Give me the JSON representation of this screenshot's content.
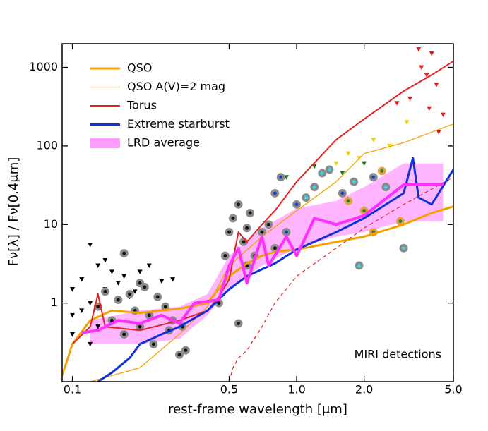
{
  "chart_data": {
    "type": "line",
    "xlabel": "rest-frame wavelength [μm]",
    "ylabel": "Fν[λ] / Fν[0.4μm]",
    "annotation": "MIRI detections",
    "xscale": "log",
    "yscale": "log",
    "xlim": [
      0.09,
      5.0
    ],
    "ylim": [
      0.1,
      2000
    ],
    "xticks": [
      0.1,
      0.5,
      {
        "value": 1,
        "label": "1.0"
      },
      {
        "value": 2,
        "label": "2.0"
      },
      {
        "value": 5,
        "label": "5.0"
      }
    ],
    "yticks": [
      1,
      10,
      100,
      1000
    ],
    "legend": "upper left",
    "series": [
      {
        "name": "QSO",
        "color": "#f5a000",
        "width": 3,
        "x": [
          0.09,
          0.1,
          0.12,
          0.15,
          0.2,
          0.3,
          0.4,
          0.5,
          0.6,
          0.7,
          0.8,
          1.0,
          1.5,
          2,
          3,
          4,
          5
        ],
        "y": [
          0.12,
          0.3,
          0.6,
          0.8,
          0.75,
          0.85,
          1.0,
          2.2,
          3.2,
          4.0,
          4.5,
          4.8,
          6,
          7,
          10,
          14,
          17
        ]
      },
      {
        "name": "QSO A(V)=2 mag",
        "color": "#f5a000",
        "width": 1.3,
        "x": [
          0.12,
          0.2,
          0.3,
          0.4,
          0.5,
          0.7,
          1,
          1.5,
          2,
          3,
          4,
          5
        ],
        "y": [
          0.1,
          0.15,
          0.4,
          0.9,
          3,
          7,
          15,
          35,
          80,
          110,
          150,
          190
        ]
      },
      {
        "name": "Torus",
        "color": "#e82020",
        "width": 2,
        "x": [
          0.1,
          0.12,
          0.13,
          0.14,
          0.2,
          0.3,
          0.4,
          0.45,
          0.5,
          0.55,
          0.6,
          0.7,
          0.8,
          1,
          1.5,
          2,
          3,
          4,
          5
        ],
        "y": [
          0.3,
          0.5,
          1.3,
          0.5,
          0.45,
          0.6,
          0.8,
          1.2,
          2,
          8,
          6,
          10,
          15,
          35,
          120,
          220,
          500,
          800,
          1200
        ]
      },
      {
        "color": "#e82020",
        "width": 1.2,
        "dash": "5,4",
        "x": [
          0.5,
          0.52,
          0.55,
          0.6,
          0.7,
          0.8,
          1,
          1.5,
          2,
          3,
          5
        ],
        "y": [
          0.1,
          0.15,
          0.2,
          0.25,
          0.5,
          1.0,
          2.2,
          5,
          9,
          18,
          40
        ]
      },
      {
        "name": "Extreme starburst",
        "color": "#1030d8",
        "width": 3,
        "x": [
          0.13,
          0.15,
          0.18,
          0.2,
          0.25,
          0.3,
          0.4,
          0.5,
          0.6,
          0.8,
          1,
          1.5,
          2,
          3,
          3.3,
          3.5,
          4,
          5
        ],
        "y": [
          0.1,
          0.13,
          0.2,
          0.3,
          0.4,
          0.5,
          0.8,
          1.5,
          2.2,
          3.2,
          4.8,
          8,
          12,
          25,
          70,
          22,
          18,
          50
        ]
      },
      {
        "name": "LRD average",
        "color": "#ff30ff",
        "width": 4,
        "band_color": "#ff9cff",
        "x": [
          0.11,
          0.13,
          0.16,
          0.2,
          0.25,
          0.3,
          0.35,
          0.45,
          0.5,
          0.55,
          0.6,
          0.7,
          0.75,
          0.9,
          1,
          1.2,
          1.5,
          2,
          3,
          4.5
        ],
        "y": [
          0.42,
          0.45,
          0.6,
          0.55,
          0.7,
          0.55,
          1.0,
          1.1,
          3,
          5,
          1.8,
          7,
          3,
          7,
          4,
          12,
          10,
          13,
          32,
          32
        ],
        "band_x": [
          0.12,
          0.2,
          0.3,
          0.4,
          0.5,
          0.7,
          1.0,
          1.5,
          2.0,
          3.0,
          4.5
        ],
        "band_high": [
          0.6,
          0.8,
          0.9,
          1.3,
          4,
          9,
          16,
          20,
          30,
          60,
          60
        ],
        "band_low": [
          0.3,
          0.3,
          0.35,
          0.7,
          1.5,
          3,
          5,
          7,
          8,
          11,
          11
        ]
      }
    ],
    "scatter": [
      {
        "edge": "#8a8a8a",
        "face": "#111111",
        "x": [
          0.13,
          0.14,
          0.15,
          0.16,
          0.17,
          0.18,
          0.19,
          0.2,
          0.21,
          0.22,
          0.24,
          0.26,
          0.28,
          0.3,
          0.32,
          0.17,
          0.2,
          0.23,
          0.27,
          0.31,
          0.45,
          0.48,
          0.5,
          0.52,
          0.55,
          0.58,
          0.6,
          0.62,
          0.65,
          0.7,
          0.75,
          0.8,
          0.55,
          0.6
        ],
        "y": [
          0.9,
          1.4,
          0.6,
          1.1,
          0.4,
          1.3,
          0.8,
          0.5,
          1.6,
          0.7,
          1.2,
          0.9,
          0.6,
          0.22,
          0.25,
          4.3,
          1.8,
          0.3,
          0.45,
          0.5,
          1.0,
          4.0,
          8,
          12,
          18,
          6,
          9,
          14,
          4,
          8,
          10,
          5,
          0.55,
          3
        ]
      },
      {
        "edge": "#8a8a8a",
        "face": "#30d8e8",
        "x": [
          1.3,
          1.4,
          1.2,
          1.8,
          2.5,
          3.0,
          1.9,
          1.1
        ],
        "y": [
          45,
          50,
          30,
          35,
          30,
          5,
          3,
          22
        ]
      },
      {
        "edge": "#8a8a8a",
        "face": "#1a3fcc",
        "x": [
          0.8,
          0.85,
          1.0,
          1.6,
          2.2,
          0.9
        ],
        "y": [
          25,
          40,
          18,
          25,
          40,
          8
        ]
      },
      {
        "edge": "#e8a040",
        "face": "#2e7d32",
        "x": [
          1.7,
          2.0,
          2.4,
          2.9,
          2.2
        ],
        "y": [
          20,
          15,
          48,
          11,
          8
        ]
      }
    ],
    "limits": [
      {
        "color": "#000000",
        "x": [
          0.1,
          0.11,
          0.12,
          0.13,
          0.14,
          0.15,
          0.16,
          0.18,
          0.2,
          0.22,
          0.1,
          0.11,
          0.12,
          0.14,
          0.17,
          0.19,
          0.25,
          0.28,
          0.1,
          0.12,
          0.13
        ],
        "y": [
          1.5,
          2,
          5.5,
          3,
          3.5,
          2.5,
          1.8,
          1.2,
          2.5,
          3,
          0.4,
          0.8,
          1.0,
          1.5,
          2.2,
          1.4,
          1.9,
          2.0,
          0.7,
          0.3,
          0.5
        ]
      },
      {
        "color": "#e82020",
        "x": [
          3.5,
          4.0,
          4.2,
          3.8,
          3.2,
          2.8,
          4.5,
          3.9,
          4.3,
          3.6
        ],
        "y": [
          1700,
          1500,
          600,
          800,
          400,
          350,
          250,
          300,
          150,
          1000
        ]
      },
      {
        "color": "#f0d000",
        "x": [
          1.5,
          1.7,
          1.9,
          2.2,
          2.6,
          3.1
        ],
        "y": [
          60,
          80,
          70,
          120,
          100,
          200
        ]
      },
      {
        "color": "#1a7a1a",
        "x": [
          0.9,
          1.2,
          1.6,
          2.0
        ],
        "y": [
          40,
          55,
          45,
          60
        ]
      }
    ]
  }
}
